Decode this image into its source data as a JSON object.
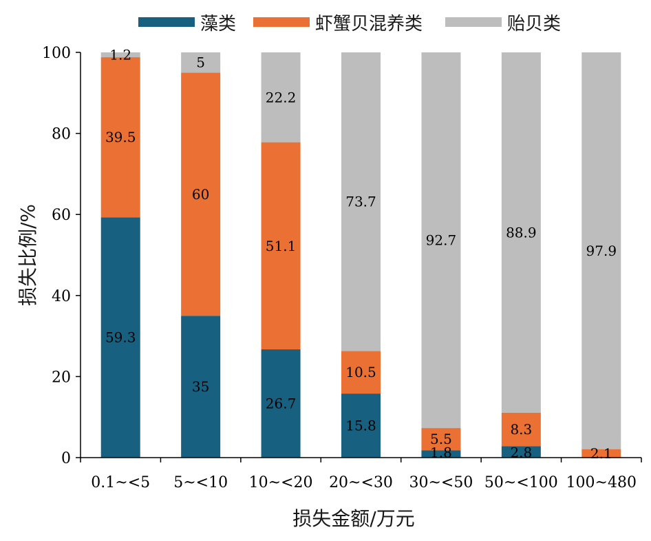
{
  "chart_data": {
    "type": "bar",
    "stacked": true,
    "categories": [
      "0.1~<5",
      "5~<10",
      "10~<20",
      "20~<30",
      "30~<50",
      "50~<100",
      "100~480"
    ],
    "series": [
      {
        "name": "藻类",
        "color": "#17607f",
        "values": [
          59.3,
          35,
          26.7,
          15.8,
          1.8,
          2.8,
          0
        ]
      },
      {
        "name": "虾蟹贝混养类",
        "color": "#ea7133",
        "values": [
          39.5,
          60,
          51.1,
          10.5,
          5.5,
          8.3,
          2.1
        ]
      },
      {
        "name": "贻贝类",
        "color": "#bdbdbd",
        "values": [
          1.2,
          5,
          22.2,
          73.7,
          92.7,
          88.9,
          97.9
        ]
      }
    ],
    "data_labels": [
      [
        "59.3",
        "35",
        "26.7",
        "15.8",
        "1.8",
        "2.8",
        ""
      ],
      [
        "39.5",
        "60",
        "51.1",
        "10.5",
        "5.5",
        "8.3",
        "2.1"
      ],
      [
        "1.2",
        "5",
        "22.2",
        "73.7",
        "92.7",
        "88.9",
        "97.9"
      ]
    ],
    "xlabel": "损失金额/万元",
    "ylabel": "损失比例/%",
    "ylim": [
      0,
      100
    ],
    "yticks": [
      0,
      20,
      40,
      60,
      80,
      100
    ],
    "legend": "top",
    "grid": false
  }
}
